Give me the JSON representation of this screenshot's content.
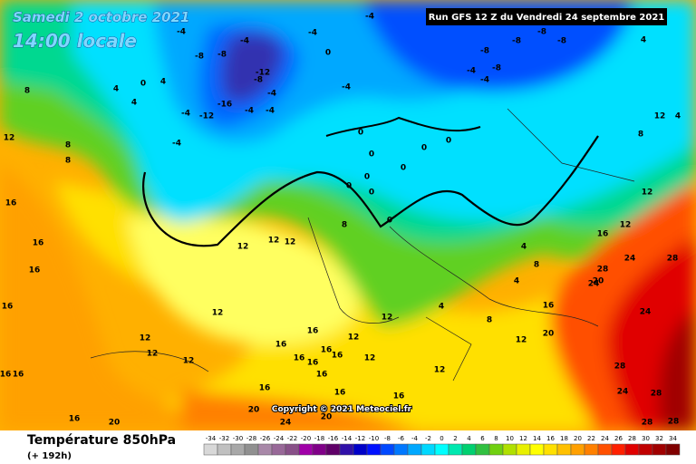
{
  "header": {
    "date": "Samedi 2 octobre 2021",
    "time": "14:00 locale",
    "run": "Run GFS 12 Z du Vendredi 24 septembre 2021"
  },
  "footer": {
    "title": "Température 850hPa",
    "lead": "(+ 192h)",
    "copyright": "Copyright © 2021 Meteociel.fr"
  },
  "scale": {
    "values": [
      -34,
      -32,
      -30,
      -28,
      -26,
      -24,
      -22,
      -20,
      -18,
      -16,
      -14,
      -12,
      -10,
      -8,
      -6,
      -4,
      -2,
      0,
      2,
      4,
      6,
      8,
      10,
      12,
      14,
      16,
      18,
      20,
      22,
      24,
      26,
      28,
      30,
      32,
      34
    ],
    "colors": [
      "#d8d8d8",
      "#c0c0c0",
      "#a8a8a8",
      "#909090",
      "#a888a8",
      "#986898",
      "#885088",
      "#a000a8",
      "#800088",
      "#600068",
      "#3010a8",
      "#0000c8",
      "#0010ff",
      "#0048ff",
      "#0078ff",
      "#00a8ff",
      "#00d8ff",
      "#00ffff",
      "#00e8b0",
      "#00d070",
      "#30c040",
      "#70d010",
      "#b0e000",
      "#e8f000",
      "#ffff00",
      "#ffe000",
      "#ffc000",
      "#ffa000",
      "#ff8000",
      "#ff5000",
      "#ff2000",
      "#e00000",
      "#c00000",
      "#a00000",
      "#800000"
    ]
  },
  "map_labels": [
    -4,
    -4,
    -8,
    -8,
    -12,
    -8,
    -4,
    -16,
    -12,
    -4,
    -4,
    -4,
    -4,
    0,
    4,
    4,
    4,
    8,
    12,
    8,
    8,
    0,
    -4,
    -4,
    -4,
    -8,
    -8,
    -8,
    -8,
    -8,
    -4,
    -4,
    4,
    12,
    4,
    8,
    12,
    12,
    16,
    0,
    0,
    0,
    0,
    0,
    0,
    0,
    0,
    0,
    8,
    12,
    12,
    12,
    12,
    16,
    16,
    16,
    16,
    16,
    16,
    12,
    12,
    12,
    16,
    12,
    16,
    16,
    16,
    16,
    16,
    16,
    12,
    12,
    16,
    16,
    16,
    20,
    24,
    20,
    12,
    4,
    8,
    12,
    20,
    16,
    20,
    4,
    4,
    8,
    24,
    28,
    28,
    24,
    24,
    28,
    24,
    28,
    28,
    28,
    16,
    20
  ]
}
